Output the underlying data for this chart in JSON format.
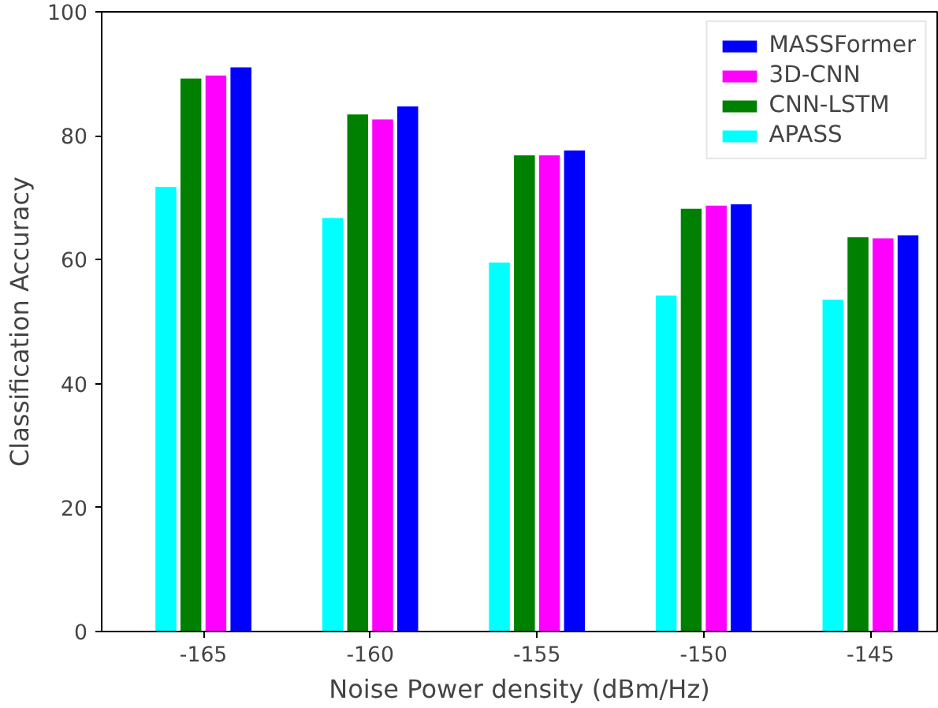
{
  "chart_data": {
    "type": "bar",
    "xlabel": "Noise Power density (dBm/Hz)",
    "ylabel": "Classification Accuracy",
    "categories": [
      "-165",
      "-160",
      "-155",
      "-150",
      "-145"
    ],
    "series": [
      {
        "name": "APASS",
        "color": "#00ffff",
        "values": [
          71.8,
          66.8,
          59.6,
          54.3,
          53.6
        ]
      },
      {
        "name": "CNN-LSTM",
        "color": "#008000",
        "values": [
          89.3,
          83.5,
          76.9,
          68.3,
          63.7
        ]
      },
      {
        "name": "3D-CNN",
        "color": "#ff00ff",
        "values": [
          89.8,
          82.7,
          76.9,
          68.8,
          63.5
        ]
      },
      {
        "name": "MASSFormer",
        "color": "#0000ff",
        "values": [
          91.1,
          84.8,
          77.7,
          69.0,
          64.0
        ]
      }
    ],
    "ylim": [
      0,
      100
    ],
    "yticks": [
      0,
      20,
      40,
      60,
      80,
      100
    ],
    "grid": false,
    "legend": "top right"
  }
}
